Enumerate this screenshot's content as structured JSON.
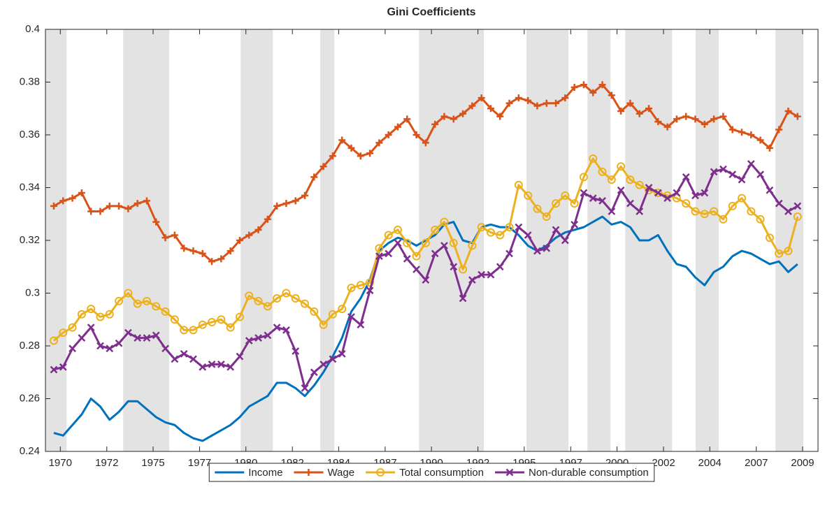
{
  "chart_data": {
    "type": "line",
    "title": "Gini Coefficients",
    "x": [
      1969.75,
      1970.25,
      1970.75,
      1971.25,
      1971.75,
      1972.25,
      1972.75,
      1973.25,
      1973.75,
      1974.25,
      1974.75,
      1975.25,
      1975.75,
      1976.25,
      1976.75,
      1977.25,
      1977.75,
      1978.25,
      1978.75,
      1979.25,
      1979.75,
      1980.25,
      1980.75,
      1981.25,
      1981.75,
      1982.25,
      1982.75,
      1983.25,
      1983.75,
      1984.25,
      1984.75,
      1985.25,
      1985.75,
      1986.25,
      1986.75,
      1987.25,
      1987.75,
      1988.25,
      1988.75,
      1989.25,
      1989.75,
      1990.25,
      1990.75,
      1991.25,
      1991.75,
      1992.25,
      1992.75,
      1993.25,
      1993.75,
      1994.25,
      1994.75,
      1995.25,
      1995.75,
      1996.25,
      1996.75,
      1997.25,
      1997.75,
      1998.25,
      1998.75,
      1999.25,
      1999.75,
      2000.25,
      2000.75,
      2001.25,
      2001.75,
      2002.25,
      2002.75,
      2003.25,
      2003.75,
      2004.25,
      2004.75,
      2005.25,
      2005.75,
      2006.25,
      2006.75,
      2007.25,
      2007.75,
      2008.25,
      2008.75,
      2009.25,
      2009.75
    ],
    "series": [
      {
        "name": "Income",
        "color": "#0072BD",
        "marker": "none",
        "values": [
          0.247,
          0.246,
          0.25,
          0.254,
          0.26,
          0.257,
          0.252,
          0.255,
          0.259,
          0.259,
          0.256,
          0.253,
          0.251,
          0.25,
          0.247,
          0.245,
          0.244,
          0.246,
          0.248,
          0.25,
          0.253,
          0.257,
          0.259,
          0.261,
          0.266,
          0.266,
          0.264,
          0.261,
          0.265,
          0.27,
          0.276,
          0.283,
          0.293,
          0.298,
          0.305,
          0.316,
          0.319,
          0.321,
          0.32,
          0.318,
          0.32,
          0.322,
          0.326,
          0.327,
          0.32,
          0.319,
          0.325,
          0.326,
          0.325,
          0.325,
          0.322,
          0.318,
          0.316,
          0.318,
          0.321,
          0.323,
          0.324,
          0.325,
          0.327,
          0.329,
          0.326,
          0.327,
          0.325,
          0.32,
          0.32,
          0.322,
          0.316,
          0.311,
          0.31,
          0.306,
          0.303,
          0.308,
          0.31,
          0.314,
          0.316,
          0.315,
          0.313,
          0.311,
          0.312,
          0.308,
          0.311
        ]
      },
      {
        "name": "Wage",
        "color": "#D95319",
        "marker": "plus",
        "values": [
          0.333,
          0.335,
          0.336,
          0.338,
          0.331,
          0.331,
          0.333,
          0.333,
          0.332,
          0.334,
          0.335,
          0.327,
          0.321,
          0.322,
          0.317,
          0.316,
          0.315,
          0.312,
          0.313,
          0.316,
          0.32,
          0.322,
          0.324,
          0.328,
          0.333,
          0.334,
          0.335,
          0.337,
          0.344,
          0.348,
          0.352,
          0.358,
          0.355,
          0.352,
          0.353,
          0.357,
          0.36,
          0.363,
          0.366,
          0.36,
          0.357,
          0.364,
          0.367,
          0.366,
          0.368,
          0.371,
          0.374,
          0.37,
          0.367,
          0.372,
          0.374,
          0.373,
          0.371,
          0.372,
          0.372,
          0.374,
          0.378,
          0.379,
          0.376,
          0.379,
          0.375,
          0.369,
          0.372,
          0.368,
          0.37,
          0.365,
          0.363,
          0.366,
          0.367,
          0.366,
          0.364,
          0.366,
          0.367,
          0.362,
          0.361,
          0.36,
          0.358,
          0.355,
          0.362,
          0.369,
          0.367
        ]
      },
      {
        "name": "Total consumption",
        "color": "#EDB120",
        "marker": "circle",
        "values": [
          0.282,
          0.285,
          0.287,
          0.292,
          0.294,
          0.291,
          0.292,
          0.297,
          0.3,
          0.296,
          0.297,
          0.295,
          0.293,
          0.29,
          0.286,
          0.286,
          0.288,
          0.289,
          0.29,
          0.287,
          0.291,
          0.299,
          0.297,
          0.295,
          0.298,
          0.3,
          0.298,
          0.296,
          0.293,
          0.288,
          0.292,
          0.294,
          0.302,
          0.303,
          0.304,
          0.317,
          0.322,
          0.324,
          0.319,
          0.314,
          0.319,
          0.324,
          0.327,
          0.319,
          0.309,
          0.318,
          0.325,
          0.323,
          0.322,
          0.325,
          0.341,
          0.337,
          0.332,
          0.329,
          0.334,
          0.337,
          0.334,
          0.344,
          0.351,
          0.346,
          0.343,
          0.348,
          0.343,
          0.341,
          0.339,
          0.338,
          0.337,
          0.336,
          0.334,
          0.331,
          0.33,
          0.331,
          0.328,
          0.333,
          0.336,
          0.331,
          0.328,
          0.321,
          0.315,
          0.316,
          0.329
        ]
      },
      {
        "name": "Non-durable consumption",
        "color": "#7E2F8E",
        "marker": "cross",
        "values": [
          0.271,
          0.272,
          0.279,
          0.283,
          0.287,
          0.28,
          0.279,
          0.281,
          0.285,
          0.283,
          0.283,
          0.284,
          0.279,
          0.275,
          0.277,
          0.275,
          0.272,
          0.273,
          0.273,
          0.272,
          0.276,
          0.282,
          0.283,
          0.284,
          0.287,
          0.286,
          0.278,
          0.264,
          0.27,
          0.273,
          0.275,
          0.277,
          0.291,
          0.288,
          0.301,
          0.314,
          0.315,
          0.319,
          0.313,
          0.309,
          0.305,
          0.315,
          0.318,
          0.31,
          0.298,
          0.305,
          0.307,
          0.307,
          0.31,
          0.315,
          0.325,
          0.322,
          0.316,
          0.317,
          0.324,
          0.32,
          0.326,
          0.338,
          0.336,
          0.335,
          0.331,
          0.339,
          0.334,
          0.331,
          0.34,
          0.338,
          0.336,
          0.338,
          0.344,
          0.337,
          0.338,
          0.346,
          0.347,
          0.345,
          0.343,
          0.349,
          0.345,
          0.339,
          0.334,
          0.331,
          0.333
        ]
      }
    ],
    "shaded_periods": [
      [
        1969.31,
        1970.44
      ],
      [
        1973.48,
        1975.96
      ],
      [
        1979.8,
        1981.53
      ],
      [
        1984.08,
        1984.84
      ],
      [
        1989.39,
        1992.88
      ],
      [
        1995.17,
        1997.43
      ],
      [
        1998.45,
        1999.69
      ],
      [
        2000.48,
        2003.0
      ],
      [
        2004.27,
        2005.51
      ],
      [
        2008.56,
        2010.06
      ]
    ],
    "shade_color": "#e3e3e3",
    "xlim": [
      1969.3,
      2010.85
    ],
    "ylim": [
      0.24,
      0.4
    ],
    "xticks": [
      {
        "value": 1970.1,
        "label": "1970"
      },
      {
        "value": 1972.6,
        "label": "1972"
      },
      {
        "value": 1975.09,
        "label": "1975"
      },
      {
        "value": 1977.59,
        "label": "1977"
      },
      {
        "value": 1980.08,
        "label": "1980"
      },
      {
        "value": 1982.58,
        "label": "1982"
      },
      {
        "value": 1985.07,
        "label": "1984"
      },
      {
        "value": 1987.57,
        "label": "1987"
      },
      {
        "value": 1990.06,
        "label": "1990"
      },
      {
        "value": 1992.56,
        "label": "1992"
      },
      {
        "value": 1995.05,
        "label": "1995"
      },
      {
        "value": 1997.55,
        "label": "1997"
      },
      {
        "value": 2000.04,
        "label": "2000"
      },
      {
        "value": 2002.54,
        "label": "2002"
      },
      {
        "value": 2005.03,
        "label": "2004"
      },
      {
        "value": 2007.53,
        "label": "2007"
      },
      {
        "value": 2010.02,
        "label": "2009"
      }
    ],
    "yticks": [
      0.24,
      0.26,
      0.28,
      0.3,
      0.32,
      0.34,
      0.36,
      0.38,
      0.4
    ],
    "legend": "bottom-outside"
  }
}
